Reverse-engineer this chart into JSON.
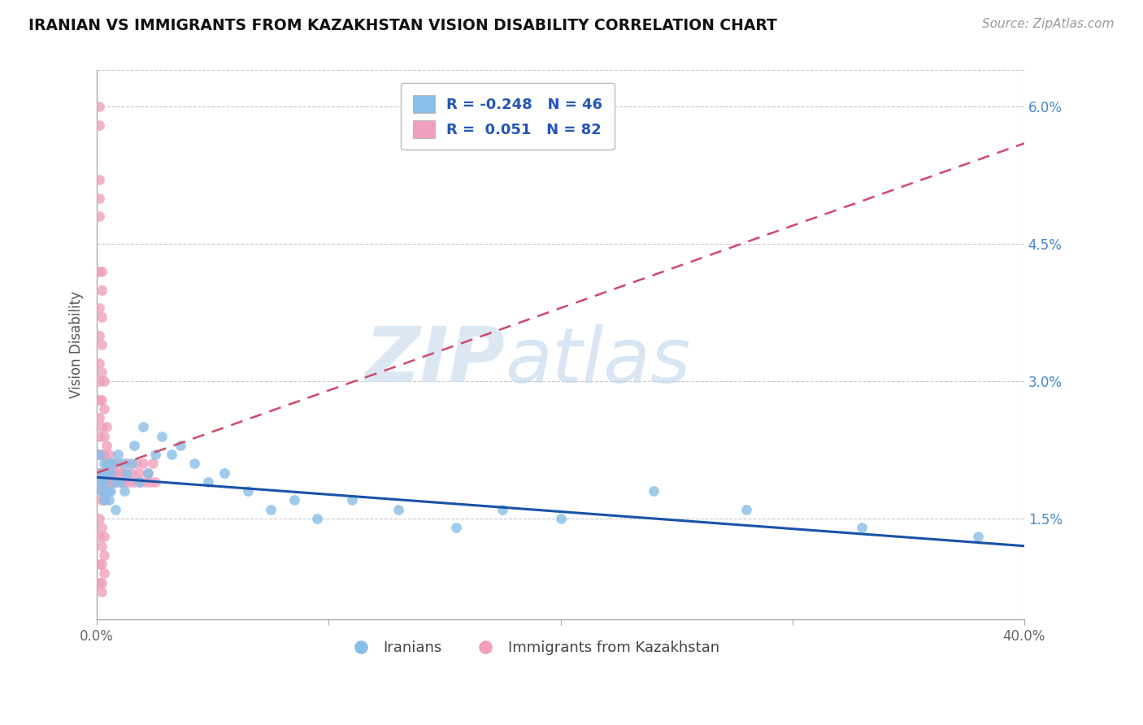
{
  "title": "IRANIAN VS IMMIGRANTS FROM KAZAKHSTAN VISION DISABILITY CORRELATION CHART",
  "source": "Source: ZipAtlas.com",
  "ylabel": "Vision Disability",
  "xmin": 0.0,
  "xmax": 0.4,
  "ymin": 0.004,
  "ymax": 0.064,
  "yticks": [
    0.015,
    0.03,
    0.045,
    0.06
  ],
  "ytick_labels": [
    "1.5%",
    "3.0%",
    "4.5%",
    "6.0%"
  ],
  "xticks": [
    0.0,
    0.1,
    0.2,
    0.3,
    0.4
  ],
  "background_color": "#ffffff",
  "grid_color": "#c8c8c8",
  "blue_color": "#88bfe8",
  "pink_color": "#f0a0be",
  "blue_line_color": "#1a52a8",
  "pink_line_color": "#d04868",
  "legend_R_blue": "-0.248",
  "legend_N_blue": "46",
  "legend_R_pink": "0.051",
  "legend_N_pink": "82",
  "iranians_x": [
    0.001,
    0.001,
    0.002,
    0.002,
    0.003,
    0.003,
    0.003,
    0.004,
    0.004,
    0.005,
    0.005,
    0.006,
    0.006,
    0.007,
    0.008,
    0.008,
    0.009,
    0.01,
    0.011,
    0.012,
    0.013,
    0.015,
    0.016,
    0.018,
    0.02,
    0.022,
    0.025,
    0.028,
    0.032,
    0.036,
    0.042,
    0.048,
    0.055,
    0.065,
    0.075,
    0.085,
    0.095,
    0.11,
    0.13,
    0.155,
    0.175,
    0.2,
    0.24,
    0.28,
    0.33,
    0.38
  ],
  "iranians_y": [
    0.022,
    0.019,
    0.02,
    0.018,
    0.021,
    0.019,
    0.017,
    0.02,
    0.018,
    0.021,
    0.017,
    0.02,
    0.018,
    0.021,
    0.019,
    0.016,
    0.022,
    0.019,
    0.021,
    0.018,
    0.02,
    0.021,
    0.023,
    0.019,
    0.025,
    0.02,
    0.022,
    0.024,
    0.022,
    0.023,
    0.021,
    0.019,
    0.02,
    0.018,
    0.016,
    0.017,
    0.015,
    0.017,
    0.016,
    0.014,
    0.016,
    0.015,
    0.018,
    0.016,
    0.014,
    0.013
  ],
  "kazakhstan_x": [
    0.001,
    0.001,
    0.001,
    0.001,
    0.001,
    0.001,
    0.001,
    0.001,
    0.001,
    0.001,
    0.001,
    0.001,
    0.001,
    0.001,
    0.001,
    0.002,
    0.002,
    0.002,
    0.002,
    0.002,
    0.002,
    0.002,
    0.002,
    0.002,
    0.002,
    0.002,
    0.002,
    0.003,
    0.003,
    0.003,
    0.003,
    0.003,
    0.003,
    0.003,
    0.003,
    0.004,
    0.004,
    0.004,
    0.004,
    0.004,
    0.005,
    0.005,
    0.005,
    0.005,
    0.006,
    0.006,
    0.006,
    0.007,
    0.007,
    0.007,
    0.008,
    0.008,
    0.009,
    0.01,
    0.01,
    0.011,
    0.012,
    0.013,
    0.014,
    0.015,
    0.016,
    0.017,
    0.018,
    0.019,
    0.02,
    0.021,
    0.022,
    0.023,
    0.024,
    0.025,
    0.001,
    0.001,
    0.002,
    0.002,
    0.003,
    0.003,
    0.001,
    0.002,
    0.003,
    0.002,
    0.001,
    0.002
  ],
  "kazakhstan_y": [
    0.06,
    0.058,
    0.052,
    0.05,
    0.048,
    0.042,
    0.038,
    0.035,
    0.032,
    0.03,
    0.028,
    0.026,
    0.024,
    0.022,
    0.02,
    0.042,
    0.04,
    0.037,
    0.034,
    0.031,
    0.028,
    0.025,
    0.022,
    0.02,
    0.019,
    0.018,
    0.017,
    0.03,
    0.027,
    0.024,
    0.022,
    0.02,
    0.019,
    0.018,
    0.017,
    0.025,
    0.023,
    0.021,
    0.019,
    0.018,
    0.022,
    0.02,
    0.019,
    0.018,
    0.021,
    0.02,
    0.019,
    0.02,
    0.019,
    0.021,
    0.02,
    0.019,
    0.021,
    0.02,
    0.019,
    0.02,
    0.019,
    0.021,
    0.019,
    0.02,
    0.019,
    0.021,
    0.02,
    0.019,
    0.021,
    0.019,
    0.02,
    0.019,
    0.021,
    0.019,
    0.015,
    0.013,
    0.014,
    0.012,
    0.013,
    0.011,
    0.01,
    0.01,
    0.009,
    0.008,
    0.008,
    0.007
  ]
}
